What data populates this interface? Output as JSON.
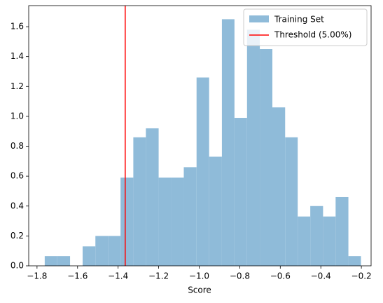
{
  "chart_data": {
    "type": "histogram",
    "xlabel": "Score",
    "bins": [
      -1.762,
      -1.7,
      -1.637,
      -1.575,
      -1.512,
      -1.45,
      -1.388,
      -1.325,
      -1.263,
      -1.2,
      -1.138,
      -1.076,
      -1.013,
      -0.951,
      -0.888,
      -0.826,
      -0.764,
      -0.701,
      -0.639,
      -0.576,
      -0.514,
      -0.452,
      -0.389,
      -0.327,
      -0.264,
      -0.202
    ],
    "counts": [
      0.065,
      0.065,
      0,
      0.13,
      0.2,
      0.2,
      0.59,
      0.86,
      0.92,
      0.59,
      0.59,
      0.66,
      1.26,
      0.73,
      1.65,
      0.99,
      1.58,
      1.45,
      1.06,
      0.86,
      0.33,
      0.4,
      0.33,
      0.46,
      0.065
    ],
    "series_name": "Training Set",
    "color": "#8fbbd9",
    "threshold": {
      "name": "Threshold (5.00%)",
      "value": -1.365,
      "color": "#ff0000"
    },
    "xlim": [
      -1.841,
      -0.152
    ],
    "ylim": [
      0,
      1.741
    ],
    "xticks": [
      {
        "value": -1.8,
        "label": "−1.8"
      },
      {
        "value": -1.6,
        "label": "−1.6"
      },
      {
        "value": -1.4,
        "label": "−1.4"
      },
      {
        "value": -1.2,
        "label": "−1.2"
      },
      {
        "value": -1.0,
        "label": "−1.0"
      },
      {
        "value": -0.8,
        "label": "−0.8"
      },
      {
        "value": -0.6,
        "label": "−0.6"
      },
      {
        "value": -0.4,
        "label": "−0.4"
      },
      {
        "value": -0.2,
        "label": "−0.2"
      }
    ],
    "yticks": [
      {
        "value": 0,
        "label": "0.0"
      },
      0.2,
      0.4,
      0.6,
      0.8,
      {
        "value": 1,
        "label": "1.0"
      },
      1.2,
      1.4,
      1.6
    ],
    "legend": "upper right"
  }
}
